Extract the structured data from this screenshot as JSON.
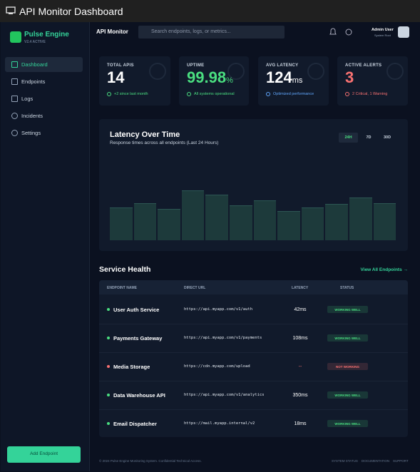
{
  "window": {
    "title": "API Monitor Dashboard"
  },
  "sidebar": {
    "brand": "Pulse Engine",
    "version": "V2.4 ACTIVE",
    "nav": [
      "Dashboard",
      "Endpoints",
      "Logs",
      "Incidents",
      "Settings"
    ],
    "button": "Add Endpoint"
  },
  "header": {
    "title": "API Monitor",
    "search_placeholder": "Search endpoints, logs, or metrics...",
    "user_name": "Admin User",
    "user_role": "System Root"
  },
  "stats": [
    {
      "label": "TOTAL APIS",
      "value": 14,
      "note": "+2 since last month",
      "color": "#ffffff",
      "note_color": "#4ade80"
    },
    {
      "label": "UPTIME",
      "value": 99.98,
      "unit": "%",
      "note": "All systems operational",
      "color": "#4ade80",
      "note_color": "#4ade80"
    },
    {
      "label": "AVG LATENCY",
      "value": 124,
      "unit": "ms",
      "note": "Optimized performance",
      "color": "#ffffff",
      "note_color": "#60a5fa"
    },
    {
      "label": "ACTIVE ALERTS",
      "value": 3,
      "note": "2 Critical, 1 Warning",
      "color": "#f87171",
      "note_color": "#f87171"
    }
  ],
  "latency_chart": {
    "title": "Latency Over Time",
    "subtitle": "Response times across all endpoints (Last 24 Hours)",
    "ranges": [
      "24H",
      "7D",
      "30D"
    ],
    "color": "#1d3a3b",
    "values": [
      46,
      52,
      44,
      70,
      64,
      49,
      56,
      41,
      46,
      51,
      60,
      52
    ]
  },
  "service_health": {
    "title": "Service Health",
    "link": "View All Endpoints →",
    "columns": [
      "ENDPOINT NAME",
      "DIRECT URL",
      "LATENCY",
      "STATUS"
    ],
    "rows": [
      {
        "name": "User Auth Service",
        "url": "https://api.myapp.com/v1/auth",
        "latency": "42ms",
        "status": "WORKING WELL",
        "color": "#4ade80"
      },
      {
        "name": "Payments Gateway",
        "url": "https://api.myapp.com/v1/payments",
        "latency": "108ms",
        "status": "WORKING WELL",
        "color": "#4ade80"
      },
      {
        "name": "Media Storage",
        "url": "https://cdn.myapp.com/upload",
        "latency": "--",
        "status": "NOT WORKING",
        "color": "#f87171"
      },
      {
        "name": "Data Warehouse API",
        "url": "https://api.myapp.com/v1/analytics",
        "latency": "350ms",
        "status": "WORKING WELL",
        "color": "#4ade80"
      },
      {
        "name": "Email Dispatcher",
        "url": "https://mail.myapp.internal/v2",
        "latency": "18ms",
        "status": "WORKING WELL",
        "color": "#4ade80"
      }
    ]
  },
  "footer": {
    "copyright": "© 2024 Pulse Engine Monitoring System. Confidential Technical Access.",
    "links": [
      "SYSTEM STATUS",
      "DOCUMENTATION",
      "SUPPORT"
    ]
  }
}
